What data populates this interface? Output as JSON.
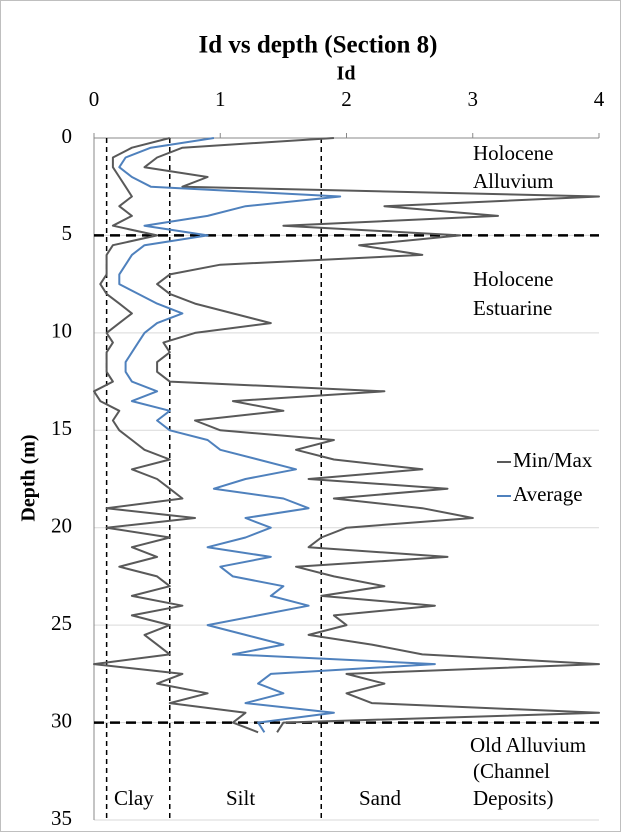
{
  "chart_data": {
    "type": "line",
    "title": "Id vs depth (Section 8)",
    "x_label": "Id",
    "y_label": "Depth (m)",
    "xlim": [
      0,
      4
    ],
    "xticks": [
      0,
      1,
      2,
      3,
      4
    ],
    "ylim": [
      0,
      35
    ],
    "yticks": [
      0,
      5,
      10,
      15,
      20,
      25,
      30,
      35
    ],
    "y_inverted": true,
    "grid": true,
    "vlines": [
      0.1,
      0.6,
      1.8
    ],
    "hlines": [
      5,
      30
    ],
    "depth": [
      0,
      0.5,
      1,
      1.5,
      2,
      2.5,
      3,
      3.5,
      4,
      4.5,
      5,
      5.5,
      6,
      6.5,
      7,
      7.5,
      8,
      8.5,
      9,
      9.5,
      10,
      10.5,
      11,
      11.5,
      12,
      12.5,
      13,
      13.5,
      14,
      14.5,
      15,
      15.5,
      16,
      16.5,
      17,
      17.5,
      18,
      18.5,
      19,
      19.5,
      20,
      20.5,
      21,
      21.5,
      22,
      22.5,
      23,
      23.5,
      24,
      24.5,
      25,
      25.5,
      26,
      26.5,
      27,
      27.5,
      28,
      28.5,
      29,
      29.5,
      30,
      30.5
    ],
    "series": [
      {
        "name": "Min/Max",
        "color": "#595959",
        "low": [
          0.6,
          0.3,
          0.15,
          0.15,
          0.2,
          0.25,
          0.3,
          0.2,
          0.3,
          0.15,
          0.5,
          0.15,
          0.1,
          0.1,
          0.1,
          0.05,
          0.1,
          0.2,
          0.3,
          0.2,
          0.1,
          0.15,
          0.1,
          0.1,
          0.1,
          0.15,
          0.0,
          0.05,
          0.2,
          0.15,
          0.2,
          0.3,
          0.4,
          0.6,
          0.3,
          0.5,
          0.6,
          0.7,
          0.1,
          0.8,
          0.1,
          0.6,
          0.3,
          0.5,
          0.2,
          0.5,
          0.6,
          0.3,
          0.7,
          0.3,
          0.6,
          0.4,
          0.5,
          0.6,
          0.0,
          0.7,
          0.5,
          0.9,
          0.6,
          1.2,
          1.1,
          1.3
        ],
        "high": [
          1.9,
          0.7,
          0.5,
          0.4,
          0.9,
          0.7,
          4.0,
          2.3,
          3.2,
          1.5,
          2.9,
          2.1,
          2.6,
          1.0,
          0.6,
          0.5,
          0.6,
          0.8,
          1.1,
          1.4,
          0.8,
          0.55,
          0.6,
          0.5,
          0.5,
          0.6,
          2.3,
          1.1,
          1.5,
          0.8,
          1.0,
          1.9,
          1.6,
          1.9,
          2.6,
          1.7,
          2.8,
          1.9,
          2.6,
          3.0,
          2.0,
          1.8,
          1.7,
          2.8,
          1.6,
          1.9,
          2.3,
          1.8,
          2.7,
          1.9,
          2.0,
          1.7,
          2.2,
          2.6,
          4.0,
          2.0,
          2.3,
          2.0,
          2.2,
          4.0,
          1.5,
          1.45
        ]
      },
      {
        "name": "Average",
        "color": "#4f81bd",
        "values": [
          0.95,
          0.45,
          0.25,
          0.2,
          0.3,
          0.45,
          1.95,
          1.2,
          0.9,
          0.4,
          0.9,
          0.4,
          0.3,
          0.25,
          0.2,
          0.2,
          0.35,
          0.5,
          0.7,
          0.5,
          0.4,
          0.35,
          0.3,
          0.25,
          0.25,
          0.3,
          0.5,
          0.3,
          0.6,
          0.5,
          0.6,
          0.9,
          1.0,
          1.3,
          1.6,
          1.2,
          0.95,
          1.5,
          1.7,
          1.2,
          1.4,
          1.2,
          0.9,
          1.4,
          1.0,
          1.1,
          1.5,
          1.4,
          1.7,
          1.3,
          0.9,
          1.2,
          1.5,
          1.1,
          2.7,
          1.4,
          1.3,
          1.5,
          1.2,
          1.9,
          1.3,
          1.35
        ]
      }
    ],
    "annotations": [
      "Holocene",
      "Alluvium",
      "Holocene",
      "Estuarine",
      "Old Alluvium",
      "(Channel",
      "Deposits)",
      "Clay",
      "Silt",
      "Sand"
    ]
  }
}
